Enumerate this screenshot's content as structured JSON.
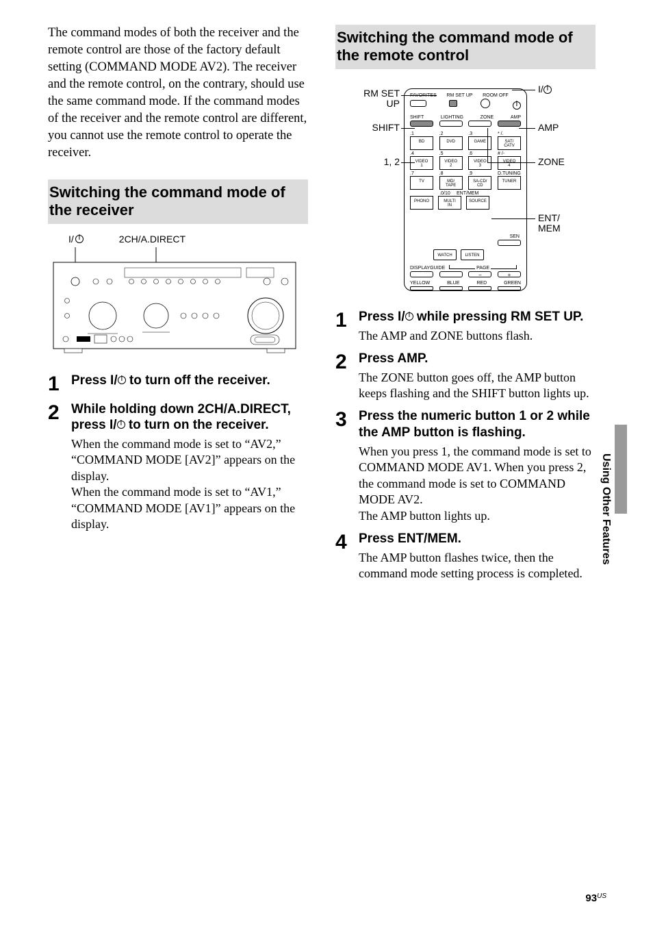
{
  "intro": "The command modes of both the receiver and the remote control are those of the factory default setting (COMMAND MODE AV2). The receiver and the remote control, on the contrary, should use the same command mode. If the command modes of the receiver and the remote control are different, you cannot use the remote control to operate the receiver.",
  "left": {
    "heading": "Switching the command mode of the receiver",
    "diagram": {
      "label_power_prefix": "I/",
      "label_2ch": "2CH/A.DIRECT"
    },
    "steps": [
      {
        "num": "1",
        "title_pre": "Press I/",
        "title_post": " to turn off the receiver.",
        "text": ""
      },
      {
        "num": "2",
        "title_pre": "While holding down 2CH/A.DIRECT, press I/",
        "title_post": " to turn on the receiver.",
        "text": "When the command mode is set to “AV2,” “COMMAND MODE [AV2]” appears on the display.\nWhen the command mode is set to “AV1,” “COMMAND MODE [AV1]” appears on the display."
      }
    ]
  },
  "right": {
    "heading": "Switching the command mode of the remote control",
    "remote_labels": {
      "rm_setup": "RM SET\nUP",
      "shift": "SHIFT",
      "one_two": "1, 2",
      "power_prefix": "I/",
      "amp": "AMP",
      "zone": "ZONE",
      "entmem": "ENT/\nMEM"
    },
    "remote_inside": {
      "row_top": [
        "FAVORITES",
        "RM SET UP",
        "ROOM OFF"
      ],
      "row_mode": [
        "SHIFT",
        "LIGHTING",
        "ZONE",
        "AMP"
      ],
      "row_a_top": [
        ".1",
        ".2",
        ".3",
        "* /."
      ],
      "row_a": [
        "BD",
        "DVD",
        "GAME",
        "SAT/\nCATV"
      ],
      "row_b_top": [
        ".4",
        ".5",
        ".6",
        "# /-"
      ],
      "row_b": [
        "VIDEO\n1",
        "VIDEO\n2",
        "VIDEO\n3",
        "VIDEO\n4"
      ],
      "row_c_top": [
        ".7",
        ".8",
        ".9",
        "D.TUNING"
      ],
      "row_c": [
        "TV",
        "MD/\nTAPE",
        "SA-CD/\nCD",
        "TUNER"
      ],
      "row_d_top": ".0/10",
      "row_d_top2": "ENT/MEM",
      "row_d": [
        "PHONO",
        "MULTI\nIN",
        "SOURCE"
      ],
      "sen": "SEN",
      "row_wl": [
        "WATCH",
        "LISTEN"
      ],
      "row_dg": [
        "DISPLAY",
        "GUIDE"
      ],
      "page": "PAGE",
      "page_minus": "−",
      "page_plus": "+",
      "row_colors": [
        "YELLOW",
        "BLUE",
        "RED",
        "GREEN"
      ]
    },
    "steps": [
      {
        "num": "1",
        "title_pre": "Press I/",
        "title_post": " while pressing RM SET UP.",
        "text": "The AMP and ZONE buttons flash."
      },
      {
        "num": "2",
        "title_pre": "Press AMP.",
        "title_post": "",
        "text": "The ZONE button goes off, the AMP button keeps flashing and the SHIFT button lights up."
      },
      {
        "num": "3",
        "title_pre": "Press the numeric button 1 or 2 while the AMP button is flashing.",
        "title_post": "",
        "text": "When you press 1, the command mode is set to COMMAND MODE AV1. When you press 2, the command mode is set to COMMAND MODE AV2.\nThe AMP button lights up."
      },
      {
        "num": "4",
        "title_pre": "Press ENT/MEM.",
        "title_post": "",
        "text": "The AMP button flashes twice, then the command mode setting process is completed."
      }
    ]
  },
  "side_label": "Using Other Features",
  "page_number": "93",
  "page_region": "US",
  "colors": {
    "heading_bg": "#dcdcdc",
    "tab_bg": "#9a9a9a",
    "text": "#000000",
    "bg": "#ffffff"
  }
}
